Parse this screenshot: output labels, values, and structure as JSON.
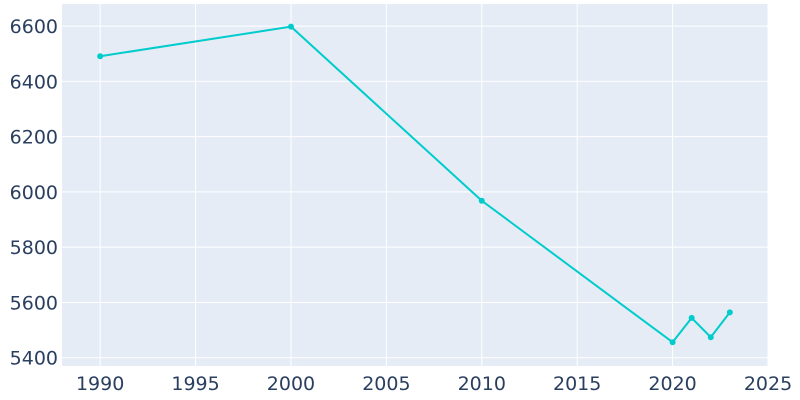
{
  "chart_data": {
    "type": "line",
    "title": "",
    "xlabel": "",
    "ylabel": "",
    "x": [
      1990,
      2000,
      2010,
      2020,
      2021,
      2022,
      2023
    ],
    "series": [
      {
        "values": [
          6491,
          6598,
          5968,
          5456,
          5544,
          5474,
          5564
        ]
      }
    ],
    "xlim": [
      1988,
      2025
    ],
    "ylim": [
      5370,
      6680
    ],
    "x_ticks": [
      1990,
      1995,
      2000,
      2005,
      2010,
      2015,
      2020,
      2025
    ],
    "y_ticks": [
      5400,
      5600,
      5800,
      6000,
      6200,
      6400,
      6600
    ],
    "x_tick_labels": [
      "1990",
      "1995",
      "2000",
      "2005",
      "2010",
      "2015",
      "2020",
      "2025"
    ],
    "y_tick_labels": [
      "5400",
      "5600",
      "5800",
      "6000",
      "6200",
      "6400",
      "6600"
    ],
    "grid": true,
    "legend": "none"
  },
  "style": {
    "plot_background": "#e5ecf6",
    "gridline_color": "#ffffff",
    "line_color": "#00cccc",
    "tick_label_color": "#2a3f5f"
  }
}
